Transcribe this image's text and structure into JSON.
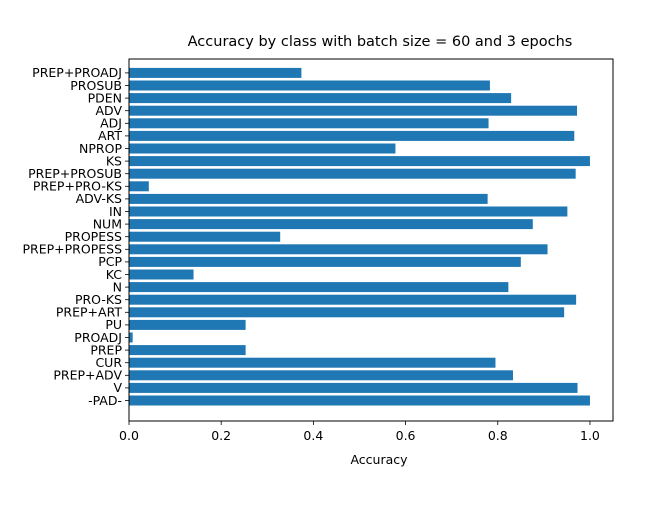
{
  "chart_data": {
    "type": "bar",
    "orientation": "horizontal",
    "title": "Accuracy by class with batch size = 60 and 3 epochs",
    "xlabel": "Accuracy",
    "ylabel": "",
    "xlim": [
      0,
      1.05
    ],
    "xticks": [
      "0.0",
      "0.2",
      "0.4",
      "0.6",
      "0.8",
      "1.0"
    ],
    "grid": false,
    "legend": "none",
    "bar_color": "#1f77b4",
    "categories": [
      "-PAD-",
      "V",
      "PREP+ADV",
      "CUR",
      "PREP",
      "PROADJ",
      "PU",
      "PREP+ART",
      "PRO-KS",
      "N",
      "KC",
      "PCP",
      "PREP+PROPESS",
      "PROPESS",
      "NUM",
      "IN",
      "ADV-KS",
      "PREP+PRO-KS",
      "PREP+PROSUB",
      "KS",
      "NPROP",
      "ART",
      "ADJ",
      "ADV",
      "PDEN",
      "PROSUB",
      "PREP+PROADJ"
    ],
    "values": [
      1.0,
      0.973,
      0.833,
      0.795,
      0.253,
      0.008,
      0.253,
      0.944,
      0.97,
      0.823,
      0.14,
      0.85,
      0.908,
      0.328,
      0.876,
      0.951,
      0.778,
      0.043,
      0.969,
      1.0,
      0.578,
      0.966,
      0.78,
      0.972,
      0.829,
      0.783,
      0.374
    ]
  }
}
